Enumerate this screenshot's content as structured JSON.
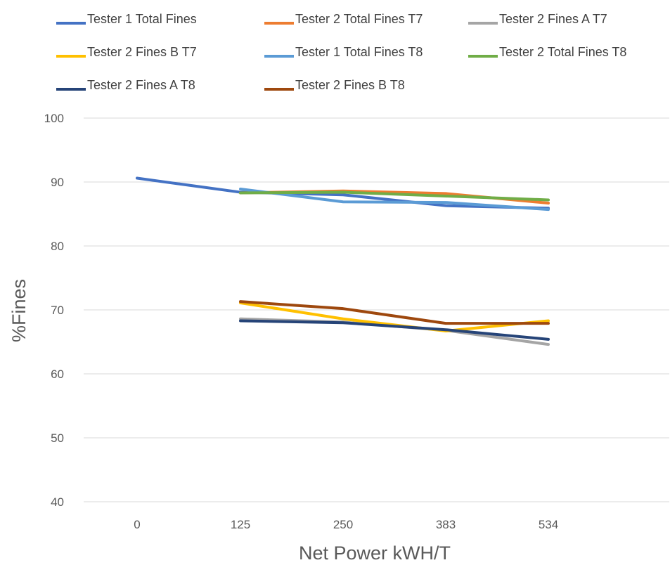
{
  "chart_data": {
    "type": "line",
    "title": "",
    "xlabel": "Net Power kWH/T",
    "ylabel": "%Fines",
    "categories": [
      "0",
      "125",
      "250",
      "383",
      "534"
    ],
    "ylim": [
      40,
      100
    ],
    "yticks": [
      40,
      50,
      60,
      70,
      80,
      90,
      100
    ],
    "grid": true,
    "legend_position": "top",
    "series": [
      {
        "name": "Tester 1 Total Fines",
        "color": "#4472C4",
        "values": [
          90.6,
          88.4,
          88.0,
          86.3,
          85.9
        ]
      },
      {
        "name": "Tester 2 Total Fines T7",
        "color": "#ED7D31",
        "values": [
          null,
          88.3,
          88.6,
          88.2,
          86.7
        ]
      },
      {
        "name": "Tester 2 Fines A T7",
        "color": "#A5A5A5",
        "values": [
          null,
          68.6,
          68.1,
          66.8,
          64.6
        ]
      },
      {
        "name": "Tester 2 Fines B T7",
        "color": "#FFC000",
        "values": [
          null,
          71.1,
          68.6,
          66.7,
          68.3
        ]
      },
      {
        "name": "Tester 1 Total Fines T8",
        "color": "#5B9BD5",
        "values": [
          null,
          88.9,
          86.9,
          86.8,
          85.7
        ]
      },
      {
        "name": "Tester 2 Total Fines T8",
        "color": "#70AD47",
        "values": [
          null,
          88.3,
          88.4,
          87.8,
          87.2
        ]
      },
      {
        "name": "Tester 2 Fines A T8",
        "color": "#264478",
        "values": [
          null,
          68.3,
          68.0,
          66.9,
          65.4
        ]
      },
      {
        "name": "Tester 2 Fines B T8",
        "color": "#9E480E",
        "values": [
          null,
          71.3,
          70.2,
          67.9,
          67.9
        ]
      }
    ]
  }
}
